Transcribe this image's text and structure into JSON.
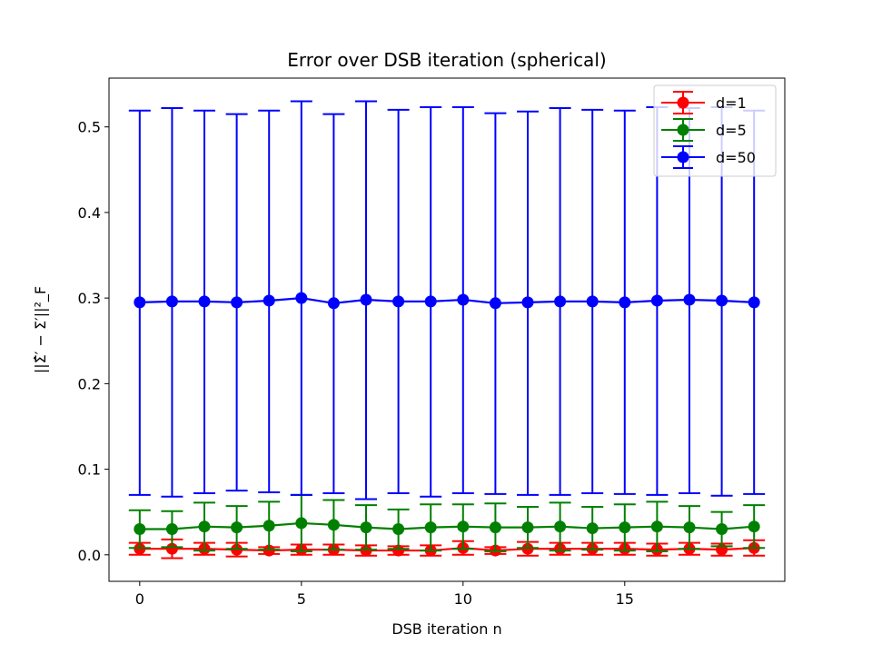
{
  "chart_data": {
    "type": "line",
    "title": "Error over DSB iteration (spherical)",
    "xlabel": "DSB iteration n",
    "ylabel": "||Σ̂′ − Σ′||²_F",
    "x": [
      0,
      1,
      2,
      3,
      4,
      5,
      6,
      7,
      8,
      9,
      10,
      11,
      12,
      13,
      14,
      15,
      16,
      17,
      18,
      19
    ],
    "xlim": [
      -0.95,
      19.95
    ],
    "ylim": [
      -0.031,
      0.557
    ],
    "xticks": [
      0,
      5,
      10,
      15
    ],
    "yticks": [
      0.0,
      0.1,
      0.2,
      0.3,
      0.4,
      0.5
    ],
    "ytick_labels": [
      "0.0",
      "0.1",
      "0.2",
      "0.3",
      "0.4",
      "0.5"
    ],
    "grid": false,
    "legend_position": "top-right",
    "series": [
      {
        "name": "d=1",
        "color": "#ff0000",
        "values": [
          0.007,
          0.007,
          0.007,
          0.006,
          0.005,
          0.006,
          0.006,
          0.005,
          0.005,
          0.005,
          0.008,
          0.005,
          0.007,
          0.007,
          0.007,
          0.007,
          0.006,
          0.007,
          0.006,
          0.008
        ],
        "lower": [
          0.0,
          -0.004,
          0.0,
          -0.002,
          0.001,
          0.0,
          0.0,
          -0.001,
          0.0,
          -0.001,
          0.0,
          0.001,
          -0.001,
          0.0,
          0.0,
          0.0,
          -0.001,
          0.0,
          -0.001,
          -0.001
        ],
        "upper": [
          0.014,
          0.018,
          0.014,
          0.014,
          0.009,
          0.012,
          0.012,
          0.011,
          0.01,
          0.011,
          0.016,
          0.009,
          0.015,
          0.014,
          0.014,
          0.014,
          0.013,
          0.014,
          0.013,
          0.017
        ]
      },
      {
        "name": "d=5",
        "color": "#008000",
        "values": [
          0.03,
          0.03,
          0.033,
          0.032,
          0.034,
          0.037,
          0.035,
          0.032,
          0.03,
          0.032,
          0.033,
          0.032,
          0.032,
          0.033,
          0.031,
          0.032,
          0.033,
          0.032,
          0.03,
          0.033
        ],
        "lower": [
          0.008,
          0.009,
          0.005,
          0.007,
          0.006,
          0.004,
          0.006,
          0.006,
          0.007,
          0.005,
          0.007,
          0.004,
          0.008,
          0.005,
          0.006,
          0.005,
          0.004,
          0.007,
          0.01,
          0.008
        ],
        "upper": [
          0.052,
          0.051,
          0.061,
          0.057,
          0.062,
          0.07,
          0.064,
          0.058,
          0.053,
          0.059,
          0.059,
          0.06,
          0.056,
          0.061,
          0.056,
          0.059,
          0.062,
          0.057,
          0.05,
          0.058
        ]
      },
      {
        "name": "d=50",
        "color": "#0000ff",
        "values": [
          0.295,
          0.296,
          0.296,
          0.295,
          0.297,
          0.3,
          0.294,
          0.298,
          0.296,
          0.296,
          0.298,
          0.294,
          0.295,
          0.296,
          0.296,
          0.295,
          0.297,
          0.298,
          0.297,
          0.295
        ],
        "lower": [
          0.07,
          0.068,
          0.072,
          0.075,
          0.073,
          0.07,
          0.072,
          0.065,
          0.072,
          0.068,
          0.072,
          0.071,
          0.07,
          0.07,
          0.072,
          0.071,
          0.07,
          0.072,
          0.069,
          0.071
        ],
        "upper": [
          0.519,
          0.522,
          0.519,
          0.515,
          0.519,
          0.53,
          0.515,
          0.53,
          0.52,
          0.523,
          0.523,
          0.516,
          0.518,
          0.522,
          0.52,
          0.519,
          0.523,
          0.522,
          0.523,
          0.519
        ]
      }
    ]
  }
}
